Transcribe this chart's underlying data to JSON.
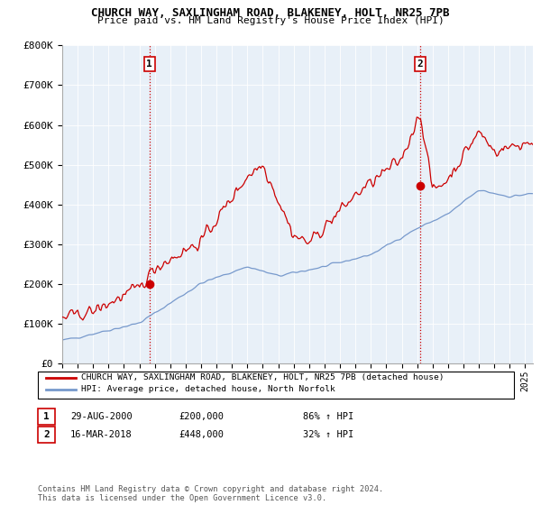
{
  "title_line1": "CHURCH WAY, SAXLINGHAM ROAD, BLAKENEY, HOLT, NR25 7PB",
  "title_line2": "Price paid vs. HM Land Registry's House Price Index (HPI)",
  "ylim": [
    0,
    800000
  ],
  "yticks": [
    0,
    100000,
    200000,
    300000,
    400000,
    500000,
    600000,
    700000,
    800000
  ],
  "ytick_labels": [
    "£0",
    "£100K",
    "£200K",
    "£300K",
    "£400K",
    "£500K",
    "£600K",
    "£700K",
    "£800K"
  ],
  "house_color": "#cc0000",
  "hpi_color": "#7799cc",
  "sale1_year": 2000.65,
  "sale1_price": 200000,
  "sale2_year": 2018.21,
  "sale2_price": 448000,
  "legend_house": "CHURCH WAY, SAXLINGHAM ROAD, BLAKENEY, HOLT, NR25 7PB (detached house)",
  "legend_hpi": "HPI: Average price, detached house, North Norfolk",
  "annotation1_date": "29-AUG-2000",
  "annotation1_price": "£200,000",
  "annotation1_hpi": "86% ↑ HPI",
  "annotation2_date": "16-MAR-2018",
  "annotation2_price": "£448,000",
  "annotation2_hpi": "32% ↑ HPI",
  "footnote": "Contains HM Land Registry data © Crown copyright and database right 2024.\nThis data is licensed under the Open Government Licence v3.0.",
  "background_color": "#ffffff",
  "plot_bg_color": "#e8f0f8",
  "grid_color": "#ffffff"
}
